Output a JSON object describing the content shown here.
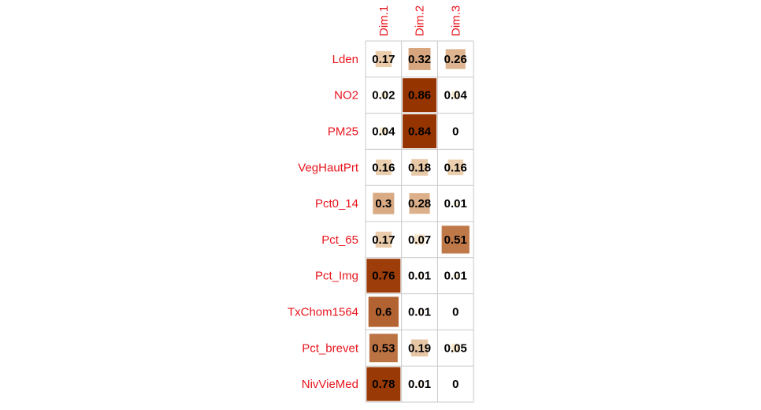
{
  "chart_data": {
    "type": "heatmap",
    "title": "",
    "columns": [
      "Dim.1",
      "Dim.2",
      "Dim.3"
    ],
    "rows": [
      "Lden",
      "NO2",
      "PM25",
      "VegHautPrt",
      "Pct0_14",
      "Pct_65",
      "Pct_Img",
      "TxChom1564",
      "Pct_brevet",
      "NivVieMed"
    ],
    "values": [
      [
        0.17,
        0.32,
        0.26
      ],
      [
        0.02,
        0.86,
        0.04
      ],
      [
        0.04,
        0.84,
        0
      ],
      [
        0.16,
        0.18,
        0.16
      ],
      [
        0.3,
        0.28,
        0.01
      ],
      [
        0.17,
        0.07,
        0.51
      ],
      [
        0.76,
        0.01,
        0.01
      ],
      [
        0.6,
        0.01,
        0
      ],
      [
        0.53,
        0.19,
        0.05
      ],
      [
        0.78,
        0.01,
        0
      ]
    ],
    "value_range": [
      0,
      1
    ],
    "grid": true,
    "colors": {
      "label": "#e8141c",
      "low": "#fff5dc",
      "mid": "#c07a4a",
      "high": "#963400",
      "grid": "#c8c8c8"
    }
  }
}
